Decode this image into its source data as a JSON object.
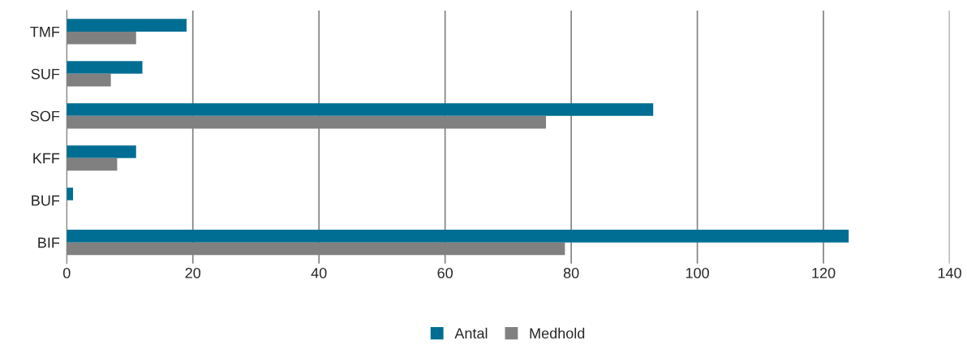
{
  "chart_data": {
    "type": "bar",
    "orientation": "horizontal",
    "categories": [
      "TMF",
      "SUF",
      "SOF",
      "KFF",
      "BUF",
      "BIF"
    ],
    "series": [
      {
        "name": "Antal",
        "color": "#006e93",
        "values": [
          19,
          12,
          93,
          11,
          1,
          124
        ]
      },
      {
        "name": "Medhold",
        "color": "#808080",
        "values": [
          11,
          7,
          76,
          8,
          null,
          79
        ]
      }
    ],
    "xlim": [
      0,
      140
    ],
    "xticks": [
      0,
      20,
      40,
      60,
      80,
      100,
      120,
      140
    ],
    "grid": "x",
    "legend": "bottom"
  }
}
